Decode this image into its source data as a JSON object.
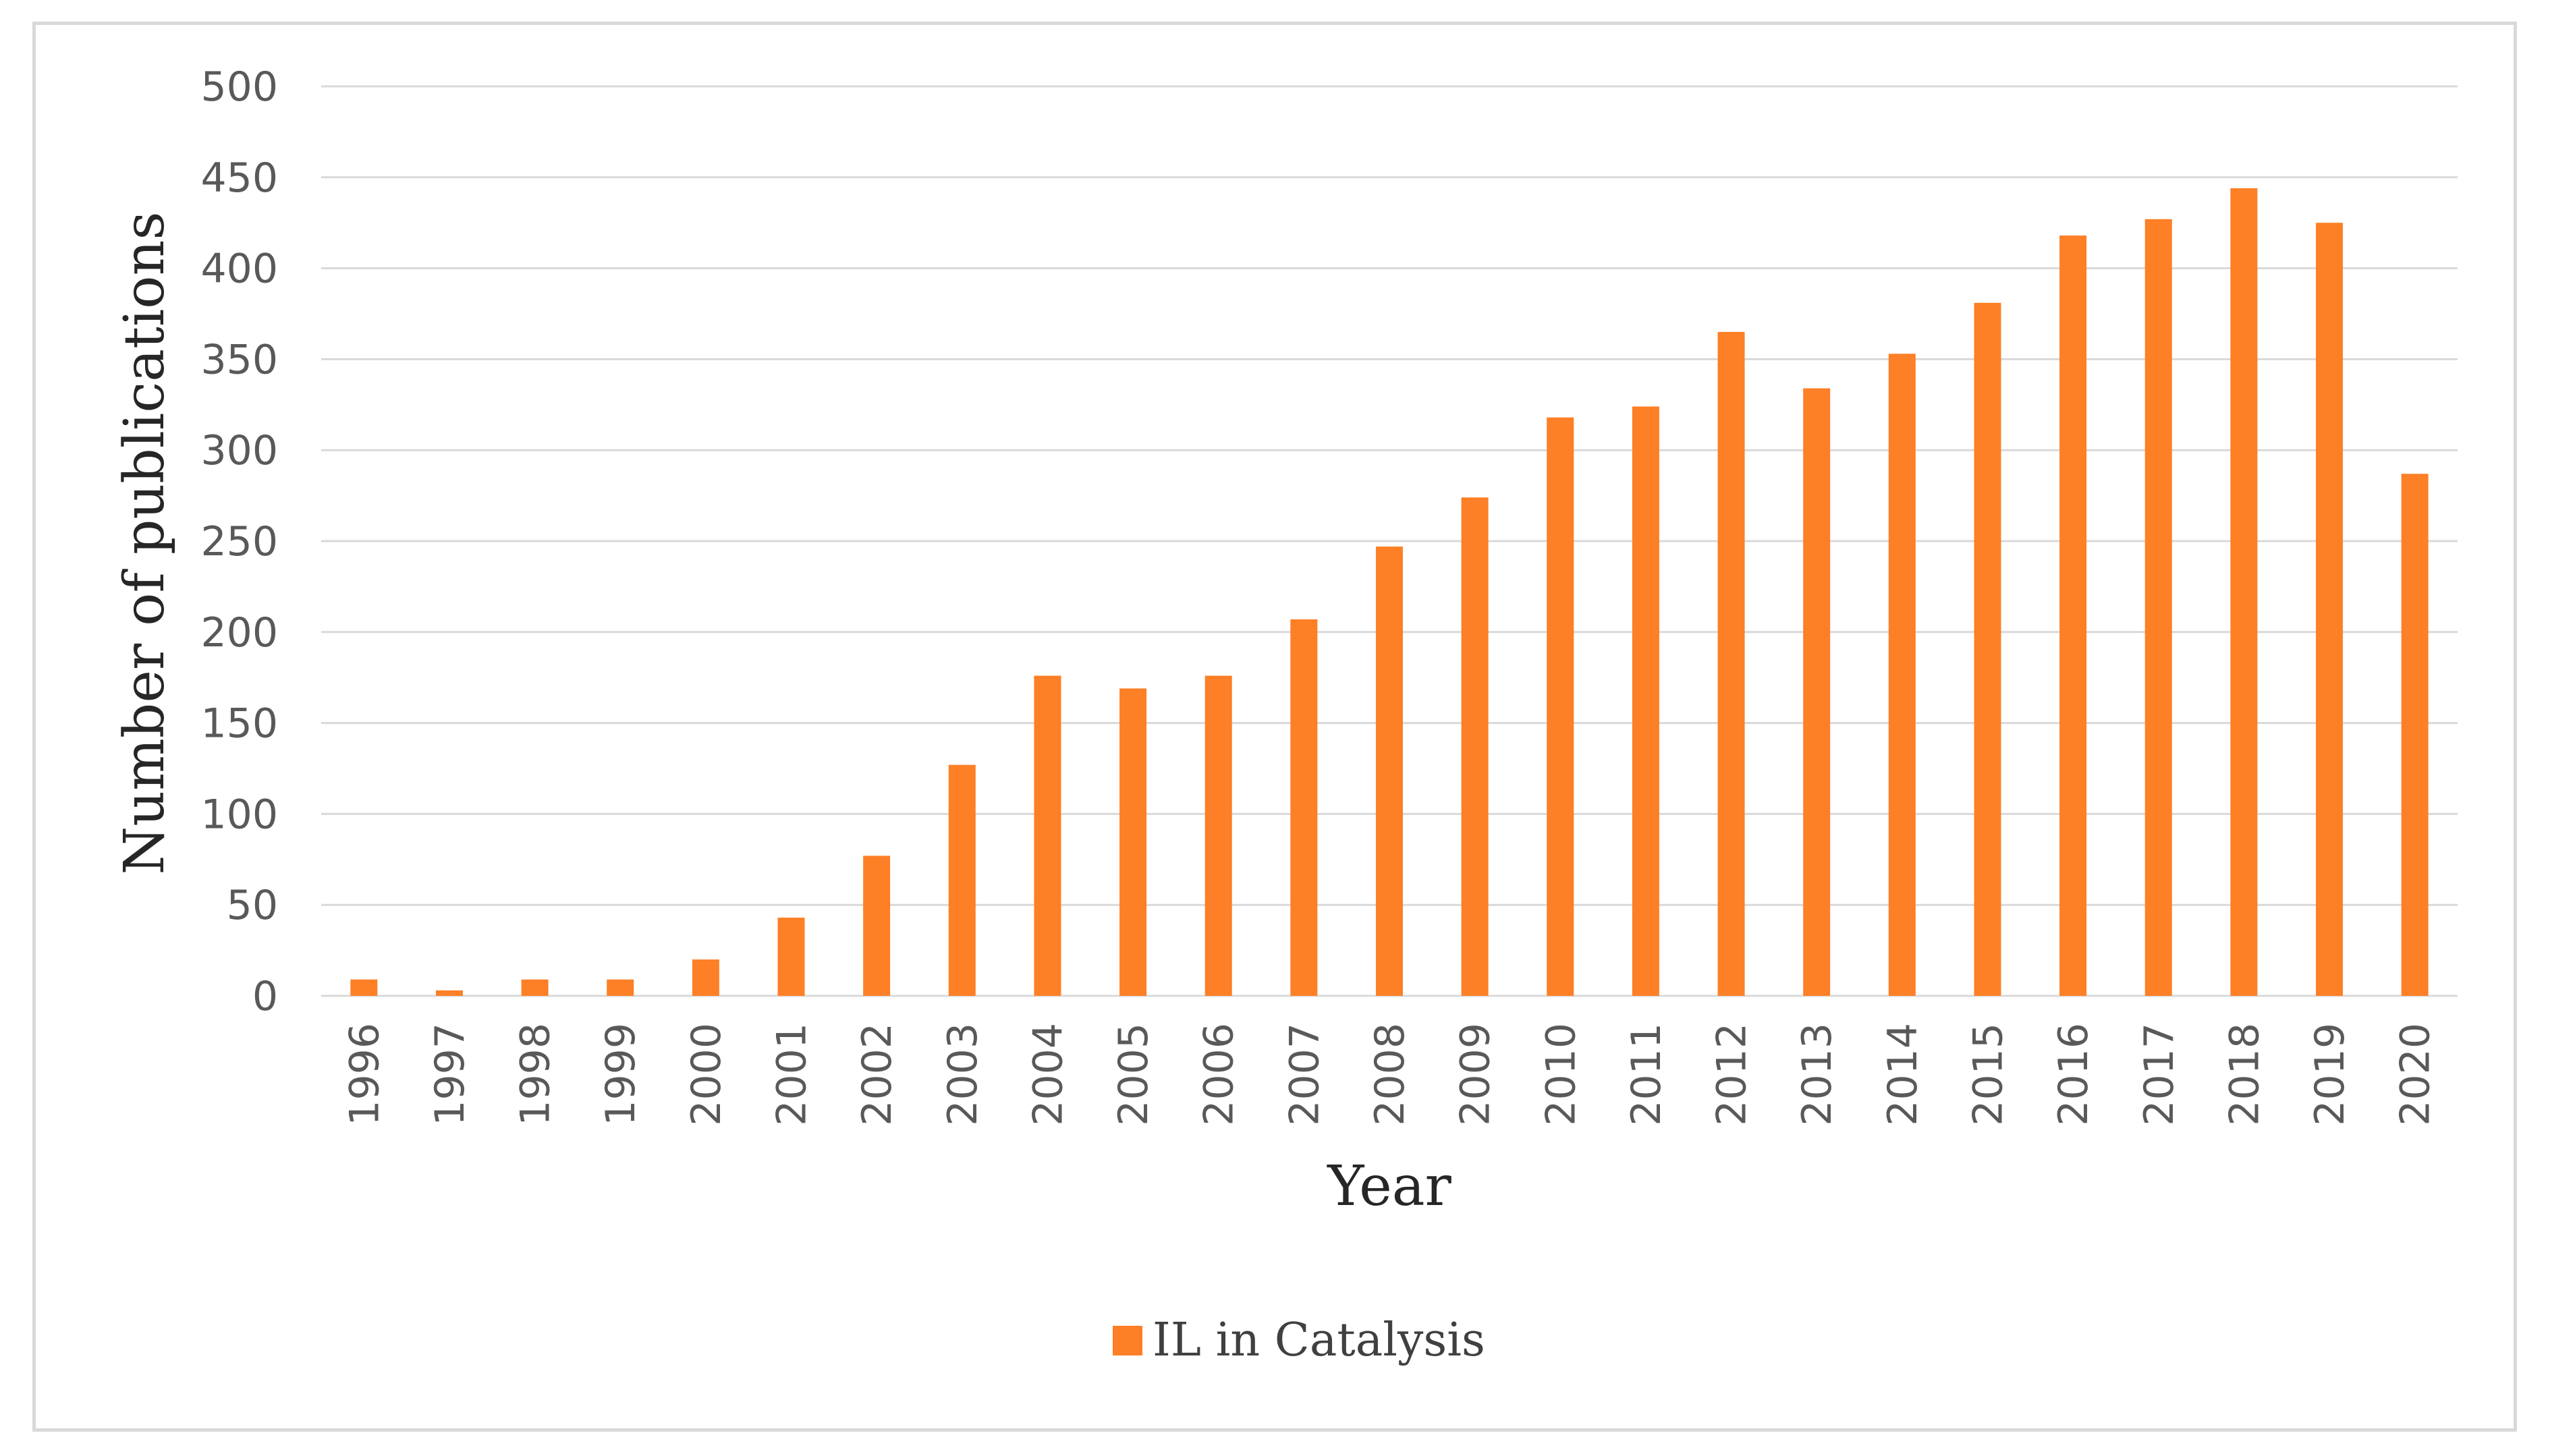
{
  "chart_data": {
    "type": "bar",
    "title": "",
    "xlabel": "Year",
    "ylabel": "Number of publications",
    "ylim": [
      0,
      500
    ],
    "yticks": [
      0,
      50,
      100,
      150,
      200,
      250,
      300,
      350,
      400,
      450,
      500
    ],
    "ytick_labels": [
      "0",
      "50",
      "100",
      "150",
      "200",
      "250",
      "300",
      "350",
      "400",
      "450",
      "500"
    ],
    "grid": true,
    "legend_position": "bottom",
    "categories": [
      "1996",
      "1997",
      "1998",
      "1999",
      "2000",
      "2001",
      "2002",
      "2003",
      "2004",
      "2005",
      "2006",
      "2007",
      "2008",
      "2009",
      "2010",
      "2011",
      "2012",
      "2013",
      "2014",
      "2015",
      "2016",
      "2017",
      "2018",
      "2019",
      "2020"
    ],
    "series": [
      {
        "name": "IL in Catalysis",
        "color": "#fd7f26",
        "values": [
          9,
          3,
          9,
          9,
          20,
          43,
          77,
          127,
          176,
          169,
          176,
          207,
          247,
          274,
          318,
          324,
          365,
          334,
          353,
          381,
          418,
          427,
          444,
          425,
          287
        ]
      }
    ]
  }
}
